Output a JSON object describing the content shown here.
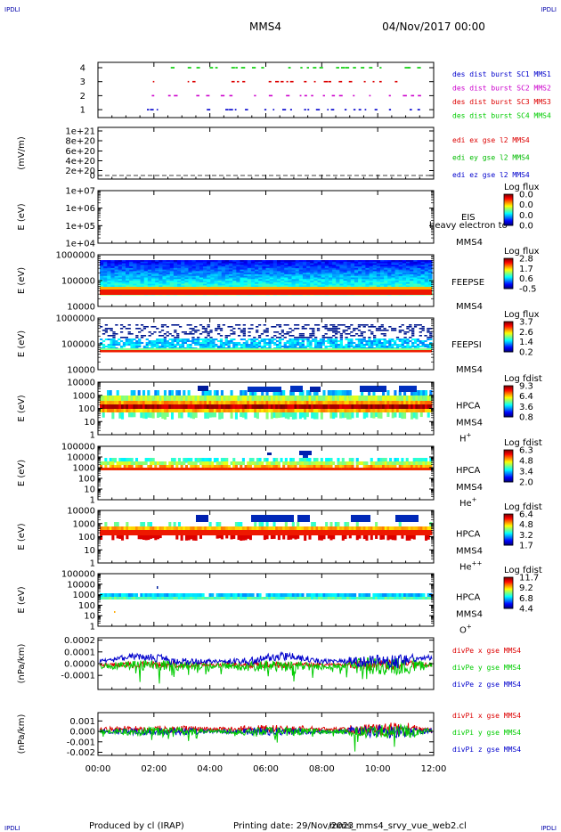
{
  "header": {
    "corner_tl": "IPDLI",
    "corner_tr": "IPDLI",
    "corner_bl": "IPDLI",
    "corner_br": "IPDLI",
    "spacecraft": "MMS4",
    "datetime": "04/Nov/2017 00:00"
  },
  "footer": {
    "producer": "Produced by cl (IRAP)",
    "printing_date": "Printing date: 29/Nov/2023",
    "filename": "mms_mms4_srvy_vue_web2.cl"
  },
  "chart_data": [
    {
      "type": "scatter",
      "panel": "burst",
      "ylim": [
        0.5,
        4.5
      ],
      "yticks": [
        "4",
        "3",
        "2",
        "1"
      ],
      "xlim": [
        "00:00",
        "12:00"
      ],
      "series": [
        {
          "name": "des dist burst SC1 MMS1",
          "level": 4,
          "color": "#00cc00"
        },
        {
          "name": "des dist burst SC2 MMS2",
          "level": 3,
          "color": "#dd0000"
        },
        {
          "name": "des dist burst SC3 MMS3",
          "level": 2,
          "color": "#cc00cc"
        },
        {
          "name": "des dist burst SC4 MMS4",
          "level": 1,
          "color": "#0000cc"
        }
      ],
      "legend_colors": [
        "#0000cc",
        "#cc00cc",
        "#dd0000",
        "#00cc00"
      ],
      "legend_labels": [
        "des dist burst SC1 MMS1",
        "des dist burst SC2 MMS2",
        "des dist burst SC3 MMS3",
        "des dist burst SC4 MMS4"
      ]
    },
    {
      "type": "line",
      "panel": "edi",
      "ylabel": "(mV/m)",
      "yticks": [
        "1e+21",
        "8e+20",
        "6e+20",
        "4e+20",
        "2e+20",
        "0"
      ],
      "ylim": [
        0,
        1e+21
      ],
      "series": [
        {
          "name": "edi ex gse l2 MMS4",
          "color": "#dd0000"
        },
        {
          "name": "edi ey gse l2 MMS4",
          "color": "#00bb00"
        },
        {
          "name": "edi ez gse l2 MMS4",
          "color": "#0000cc"
        }
      ]
    },
    {
      "type": "heatmap",
      "panel": "eis",
      "ylabel": "E (eV)",
      "yticks": [
        "1e+07",
        "1e+06",
        "1e+05",
        "1e+04"
      ],
      "scale": "log",
      "ylim": [
        10000,
        10000000
      ],
      "instrument": "EIS",
      "overlay": "heavy electron to",
      "spacecraft": "MMS4",
      "colorbar_title": "Log flux",
      "colorbar_ticks": [
        "0.0",
        "0.0",
        "0.0",
        "0.0"
      ]
    },
    {
      "type": "heatmap",
      "panel": "feepse",
      "ylabel": "E (eV)",
      "yticks": [
        "1000000",
        "100000",
        "10000"
      ],
      "scale": "log",
      "ylim": [
        10000,
        1000000
      ],
      "instrument": "FEEPSE",
      "spacecraft": "MMS4",
      "colorbar_title": "Log flux",
      "colorbar_ticks": [
        "2.8",
        "1.7",
        "0.6",
        "-0.5"
      ]
    },
    {
      "type": "heatmap",
      "panel": "feepsi",
      "ylabel": "E (eV)",
      "yticks": [
        "1000000",
        "100000",
        "10000"
      ],
      "scale": "log",
      "ylim": [
        10000,
        1000000
      ],
      "instrument": "FEEPSI",
      "spacecraft": "MMS4",
      "colorbar_title": "Log flux",
      "colorbar_ticks": [
        "3.7",
        "2.6",
        "1.4",
        "0.2"
      ]
    },
    {
      "type": "heatmap",
      "panel": "hpca_h",
      "ylabel": "E (eV)",
      "yticks": [
        "10000",
        "1000",
        "100",
        "10",
        "1"
      ],
      "scale": "log",
      "ylim": [
        1,
        10000
      ],
      "instrument": "HPCA",
      "spacecraft": "MMS4",
      "species": "H",
      "species_sup": "+",
      "colorbar_title": "Log fdist",
      "colorbar_ticks": [
        "9.3",
        "6.4",
        "3.6",
        "0.8"
      ]
    },
    {
      "type": "heatmap",
      "panel": "hpca_he",
      "ylabel": "E (eV)",
      "yticks": [
        "100000",
        "10000",
        "1000",
        "100",
        "10",
        "1"
      ],
      "scale": "log",
      "ylim": [
        1,
        100000
      ],
      "instrument": "HPCA",
      "spacecraft": "MMS4",
      "species": "He",
      "species_sup": "+",
      "colorbar_title": "Log fdist",
      "colorbar_ticks": [
        "6.3",
        "4.8",
        "3.4",
        "2.0"
      ]
    },
    {
      "type": "heatmap",
      "panel": "hpca_hepp",
      "ylabel": "E (eV)",
      "yticks": [
        "10000",
        "1000",
        "100",
        "10",
        "1"
      ],
      "scale": "log",
      "ylim": [
        1,
        10000
      ],
      "instrument": "HPCA",
      "spacecraft": "MMS4",
      "species": "He",
      "species_sup": "++",
      "colorbar_title": "Log fdist",
      "colorbar_ticks": [
        "6.4",
        "4.8",
        "3.2",
        "1.7"
      ]
    },
    {
      "type": "heatmap",
      "panel": "hpca_o",
      "ylabel": "E (eV)",
      "yticks": [
        "100000",
        "10000",
        "1000",
        "100",
        "10",
        "1"
      ],
      "scale": "log",
      "ylim": [
        1,
        100000
      ],
      "instrument": "HPCA",
      "spacecraft": "MMS4",
      "species": "O",
      "species_sup": "+",
      "colorbar_title": "Log fdist",
      "colorbar_ticks": [
        "11.7",
        "9.2",
        "6.8",
        "4.4"
      ]
    },
    {
      "type": "line",
      "panel": "divpe",
      "ylabel": "(nPa/km)",
      "yticks": [
        "0.0002",
        "0.0001",
        "0.0000",
        "-0.0001"
      ],
      "ylim": [
        -0.00022,
        0.00022
      ],
      "series": [
        {
          "name": "divPe x gse MMS4",
          "color": "#dd0000"
        },
        {
          "name": "divPe y gse MMS4",
          "color": "#00cc00"
        },
        {
          "name": "divPe z gse MMS4",
          "color": "#0000cc"
        }
      ]
    },
    {
      "type": "line",
      "panel": "divpi",
      "ylabel": "(nPa/km)",
      "yticks": [
        "0.001",
        "0.000",
        "-0.001",
        "-0.002"
      ],
      "ylim": [
        -0.0023,
        0.0018
      ],
      "series": [
        {
          "name": "divPi x gse MMS4",
          "color": "#dd0000"
        },
        {
          "name": "divPi y gse MMS4",
          "color": "#00cc00"
        },
        {
          "name": "divPi z gse MMS4",
          "color": "#0000cc"
        }
      ]
    }
  ],
  "xaxis": {
    "ticks": [
      "00:00",
      "02:00",
      "04:00",
      "06:00",
      "08:00",
      "10:00",
      "12:00"
    ],
    "xlim": [
      "00:00",
      "12:00"
    ]
  },
  "colors": {
    "red": "#dd0000",
    "green": "#00cc00",
    "blue": "#0000cc",
    "magenta": "#cc00cc",
    "corner": "#0000aa"
  }
}
